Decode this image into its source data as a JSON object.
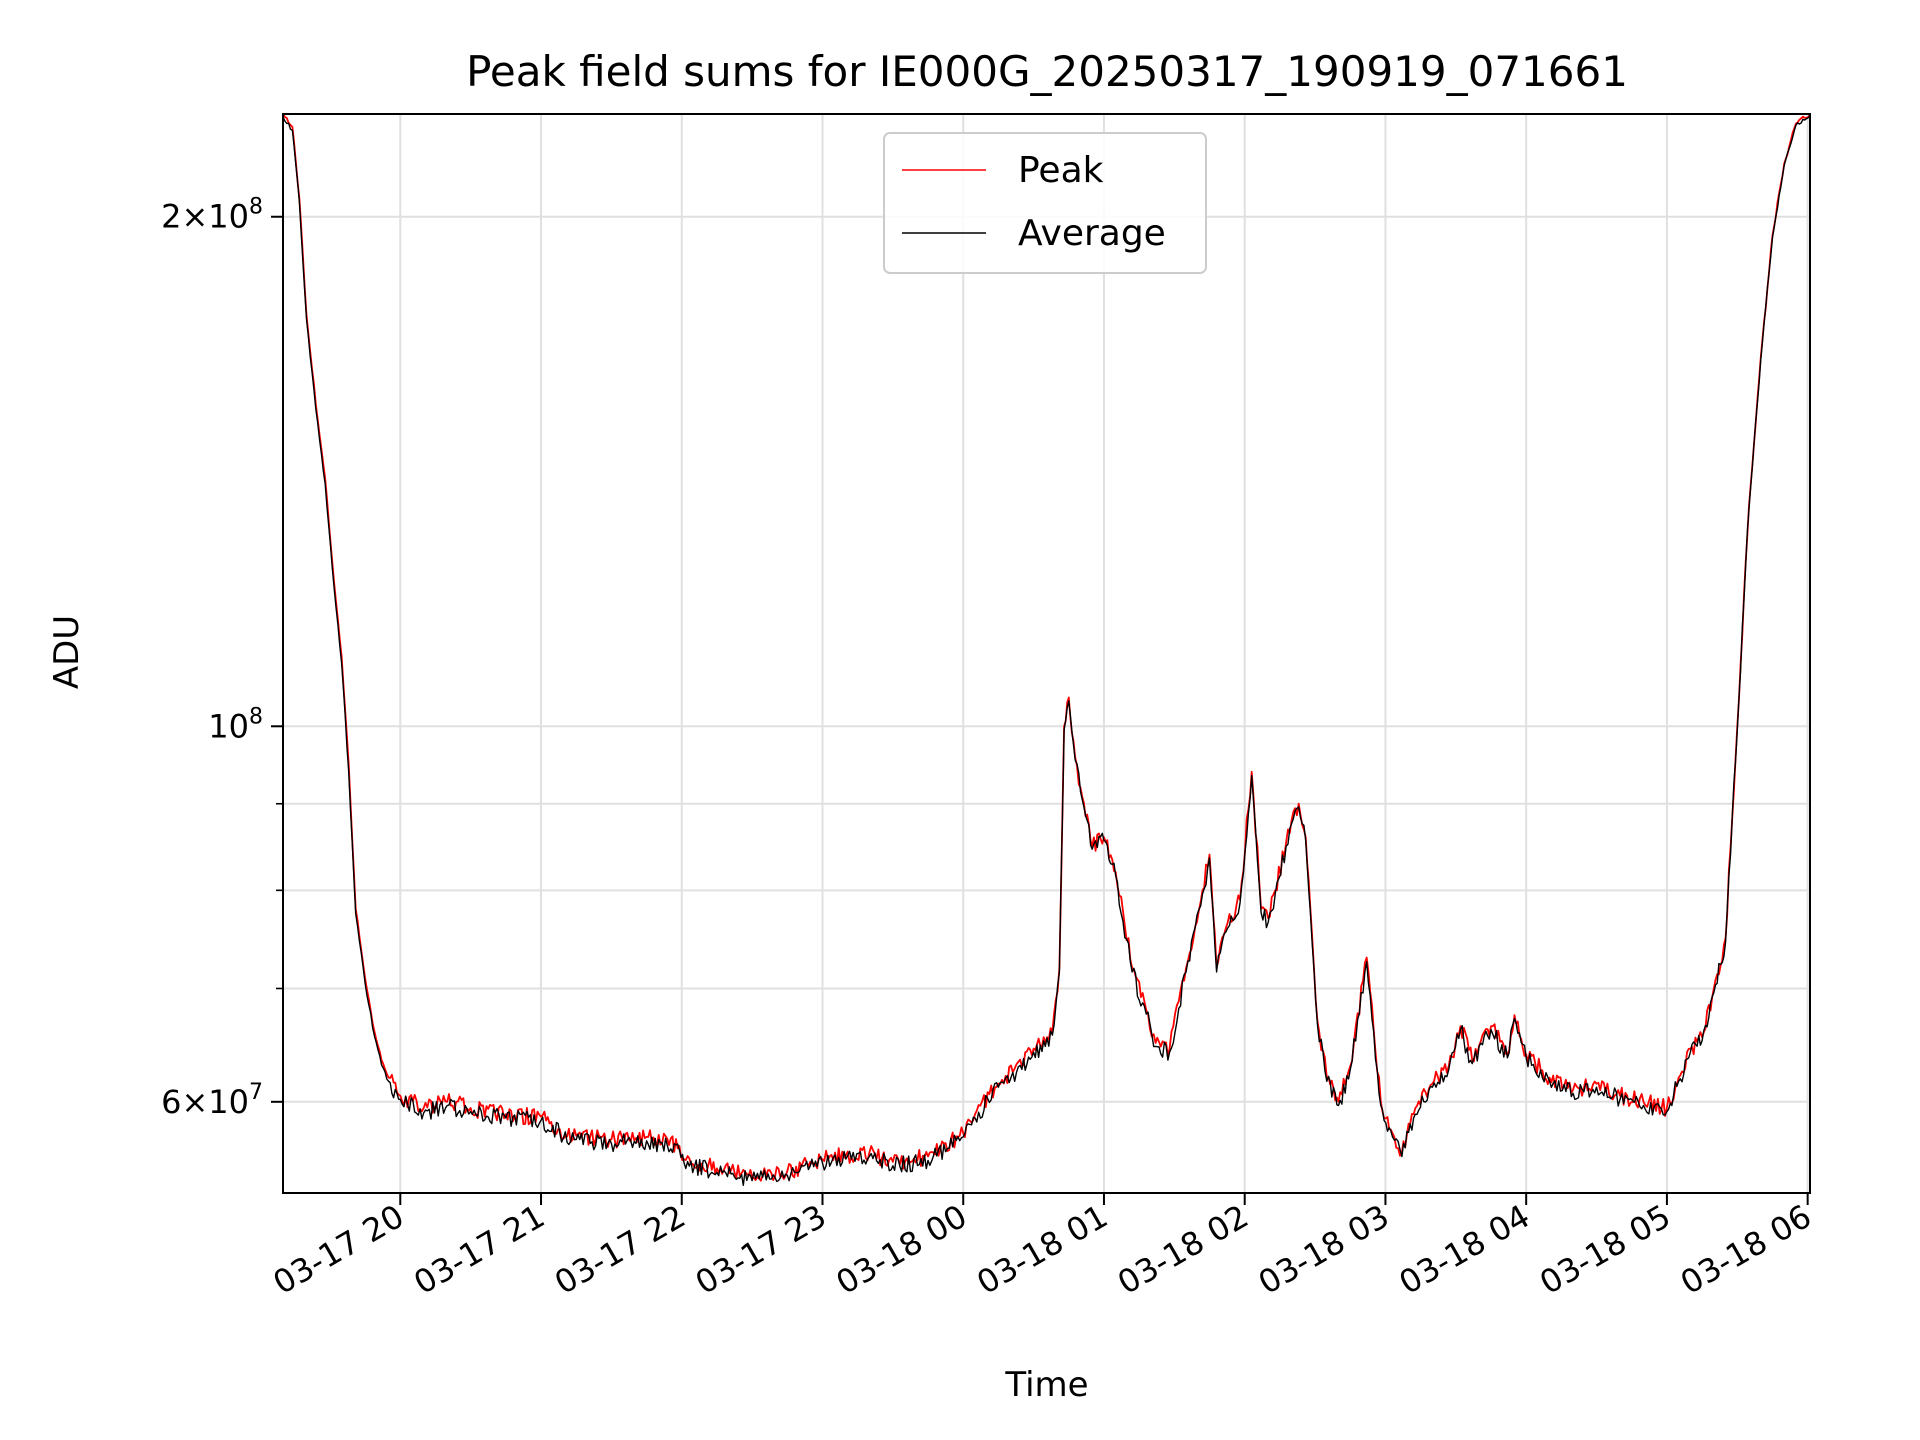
{
  "chart_data": {
    "type": "line",
    "title": "Peak field sums for IE000G_20250317_190919_071661",
    "xlabel": "Time",
    "ylabel": "ADU",
    "y_scale": "log",
    "ylim": [
      53000000,
      230000000
    ],
    "xlim": [
      "2025-03-17 19:10",
      "2025-03-18 06:01"
    ],
    "x_ticks": [
      "03-17 20",
      "03-17 21",
      "03-17 22",
      "03-17 23",
      "03-18 00",
      "03-18 01",
      "03-18 02",
      "03-18 03",
      "03-18 04",
      "03-18 05",
      "03-18 06"
    ],
    "y_major_ticks": [
      {
        "value": 60000000,
        "label_mantissa": "6",
        "label_base": "10",
        "label_exp": "7"
      },
      {
        "value": 100000000,
        "label_mantissa": "",
        "label_base": "10",
        "label_exp": "8"
      },
      {
        "value": 200000000,
        "label_mantissa": "2",
        "label_base": "10",
        "label_exp": "8"
      }
    ],
    "y_minor_ticks": [
      70000000,
      80000000,
      90000000
    ],
    "grid": true,
    "legend_position": "upper-center",
    "series": [
      {
        "name": "Peak",
        "color": "#ff0000",
        "x": [
          "2025-03-17 19:10",
          "2025-03-17 19:14",
          "2025-03-17 19:17",
          "2025-03-17 19:20",
          "2025-03-17 19:24",
          "2025-03-17 19:28",
          "2025-03-17 19:31",
          "2025-03-17 19:35",
          "2025-03-17 19:38",
          "2025-03-17 19:41",
          "2025-03-17 19:45",
          "2025-03-17 19:49",
          "2025-03-17 19:52",
          "2025-03-17 19:55",
          "2025-03-17 20:00",
          "2025-03-17 20:10",
          "2025-03-17 20:20",
          "2025-03-17 20:30",
          "2025-03-17 20:45",
          "2025-03-17 21:00",
          "2025-03-17 21:08",
          "2025-03-17 21:15",
          "2025-03-17 21:30",
          "2025-03-17 21:45",
          "2025-03-17 21:59",
          "2025-03-17 22:01",
          "2025-03-17 22:15",
          "2025-03-17 22:30",
          "2025-03-17 22:45",
          "2025-03-17 23:00",
          "2025-03-17 23:10",
          "2025-03-17 23:20",
          "2025-03-17 23:30",
          "2025-03-17 23:45",
          "2025-03-18 00:00",
          "2025-03-18 00:05",
          "2025-03-18 00:15",
          "2025-03-18 00:25",
          "2025-03-18 00:30",
          "2025-03-18 00:35",
          "2025-03-18 00:38",
          "2025-03-18 00:41",
          "2025-03-18 00:43",
          "2025-03-18 00:45",
          "2025-03-18 00:47",
          "2025-03-18 00:50",
          "2025-03-18 00:55",
          "2025-03-18 01:00",
          "2025-03-18 01:05",
          "2025-03-18 01:12",
          "2025-03-18 01:18",
          "2025-03-18 01:22",
          "2025-03-18 01:28",
          "2025-03-18 01:35",
          "2025-03-18 01:42",
          "2025-03-18 01:45",
          "2025-03-18 01:48",
          "2025-03-18 01:52",
          "2025-03-18 01:58",
          "2025-03-18 02:03",
          "2025-03-18 02:07",
          "2025-03-18 02:10",
          "2025-03-18 02:13",
          "2025-03-18 02:20",
          "2025-03-18 02:23",
          "2025-03-18 02:26",
          "2025-03-18 02:28",
          "2025-03-18 02:31",
          "2025-03-18 02:35",
          "2025-03-18 02:40",
          "2025-03-18 02:45",
          "2025-03-18 02:52",
          "2025-03-18 02:58",
          "2025-03-18 03:03",
          "2025-03-18 03:07",
          "2025-03-18 03:12",
          "2025-03-18 03:20",
          "2025-03-18 03:27",
          "2025-03-18 03:32",
          "2025-03-18 03:37",
          "2025-03-18 03:45",
          "2025-03-18 03:52",
          "2025-03-18 03:55",
          "2025-03-18 04:00",
          "2025-03-18 04:10",
          "2025-03-18 04:20",
          "2025-03-18 04:30",
          "2025-03-18 04:40",
          "2025-03-18 04:50",
          "2025-03-18 05:00",
          "2025-03-18 05:05",
          "2025-03-18 05:10",
          "2025-03-18 05:15",
          "2025-03-18 05:20",
          "2025-03-18 05:25",
          "2025-03-18 05:30",
          "2025-03-18 05:35",
          "2025-03-18 05:40",
          "2025-03-18 05:45",
          "2025-03-18 05:50",
          "2025-03-18 05:55",
          "2025-03-18 06:01"
        ],
        "y": [
          230000000,
          226000000,
          205000000,
          175000000,
          155000000,
          140000000,
          125000000,
          110000000,
          95000000,
          78000000,
          71000000,
          66000000,
          63500000,
          62000000,
          60500000,
          59500000,
          60000000,
          59500000,
          59000000,
          58800000,
          57800000,
          57300000,
          57000000,
          57200000,
          56500000,
          55500000,
          54800000,
          54200000,
          54600000,
          55500000,
          55800000,
          56000000,
          55300000,
          55700000,
          57500000,
          59000000,
          61500000,
          63000000,
          64500000,
          65000000,
          66000000,
          72000000,
          100000000,
          104000000,
          98000000,
          92000000,
          85000000,
          86000000,
          82000000,
          72000000,
          68000000,
          65000000,
          64500000,
          72000000,
          80000000,
          84000000,
          72000000,
          76000000,
          79000000,
          94000000,
          78000000,
          77000000,
          80000000,
          88000000,
          90000000,
          86000000,
          78000000,
          67000000,
          62000000,
          60000000,
          63000000,
          73000000,
          60000000,
          57500000,
          56000000,
          59000000,
          61500000,
          63000000,
          66500000,
          63500000,
          66500000,
          64000000,
          67500000,
          64000000,
          62000000,
          61000000,
          61500000,
          60500000,
          60000000,
          59500000,
          62000000,
          64500000,
          65500000,
          70000000,
          75000000,
          100000000,
          135000000,
          165000000,
          195000000,
          215000000,
          227000000,
          230000000
        ]
      },
      {
        "name": "Average",
        "color": "#000000",
        "x": [
          "2025-03-17 19:10",
          "2025-03-17 19:14",
          "2025-03-17 19:17",
          "2025-03-17 19:20",
          "2025-03-17 19:24",
          "2025-03-17 19:28",
          "2025-03-17 19:31",
          "2025-03-17 19:35",
          "2025-03-17 19:38",
          "2025-03-17 19:41",
          "2025-03-17 19:45",
          "2025-03-17 19:49",
          "2025-03-17 19:52",
          "2025-03-17 19:55",
          "2025-03-17 20:00",
          "2025-03-17 20:10",
          "2025-03-17 20:20",
          "2025-03-17 20:30",
          "2025-03-17 20:45",
          "2025-03-17 21:00",
          "2025-03-17 21:08",
          "2025-03-17 21:15",
          "2025-03-17 21:30",
          "2025-03-17 21:45",
          "2025-03-17 21:59",
          "2025-03-17 22:01",
          "2025-03-17 22:15",
          "2025-03-17 22:30",
          "2025-03-17 22:45",
          "2025-03-17 23:00",
          "2025-03-17 23:10",
          "2025-03-17 23:20",
          "2025-03-17 23:30",
          "2025-03-17 23:45",
          "2025-03-18 00:00",
          "2025-03-18 00:05",
          "2025-03-18 00:15",
          "2025-03-18 00:25",
          "2025-03-18 00:30",
          "2025-03-18 00:35",
          "2025-03-18 00:38",
          "2025-03-18 00:41",
          "2025-03-18 00:43",
          "2025-03-18 00:45",
          "2025-03-18 00:47",
          "2025-03-18 00:50",
          "2025-03-18 00:55",
          "2025-03-18 01:00",
          "2025-03-18 01:05",
          "2025-03-18 01:12",
          "2025-03-18 01:18",
          "2025-03-18 01:22",
          "2025-03-18 01:28",
          "2025-03-18 01:35",
          "2025-03-18 01:42",
          "2025-03-18 01:45",
          "2025-03-18 01:48",
          "2025-03-18 01:52",
          "2025-03-18 01:58",
          "2025-03-18 02:03",
          "2025-03-18 02:07",
          "2025-03-18 02:10",
          "2025-03-18 02:13",
          "2025-03-18 02:20",
          "2025-03-18 02:23",
          "2025-03-18 02:26",
          "2025-03-18 02:28",
          "2025-03-18 02:31",
          "2025-03-18 02:35",
          "2025-03-18 02:40",
          "2025-03-18 02:45",
          "2025-03-18 02:52",
          "2025-03-18 02:58",
          "2025-03-18 03:03",
          "2025-03-18 03:07",
          "2025-03-18 03:12",
          "2025-03-18 03:20",
          "2025-03-18 03:27",
          "2025-03-18 03:32",
          "2025-03-18 03:37",
          "2025-03-18 03:45",
          "2025-03-18 03:52",
          "2025-03-18 03:55",
          "2025-03-18 04:00",
          "2025-03-18 04:10",
          "2025-03-18 04:20",
          "2025-03-18 04:30",
          "2025-03-18 04:40",
          "2025-03-18 04:50",
          "2025-03-18 05:00",
          "2025-03-18 05:05",
          "2025-03-18 05:10",
          "2025-03-18 05:15",
          "2025-03-18 05:20",
          "2025-03-18 05:25",
          "2025-03-18 05:30",
          "2025-03-18 05:35",
          "2025-03-18 05:40",
          "2025-03-18 05:45",
          "2025-03-18 05:50",
          "2025-03-18 05:55",
          "2025-03-18 06:01"
        ],
        "y": [
          229000000,
          225000000,
          204000000,
          174000000,
          154000000,
          139000000,
          124000000,
          109000000,
          94000000,
          77500000,
          70500000,
          65600000,
          63100000,
          61700000,
          60200000,
          59100000,
          59700000,
          59200000,
          58700000,
          58500000,
          57500000,
          57000000,
          56700000,
          56900000,
          56200000,
          55200000,
          54500000,
          53900000,
          54300000,
          55200000,
          55500000,
          55700000,
          55000000,
          55400000,
          57200000,
          58700000,
          61200000,
          62700000,
          64200000,
          64700000,
          65700000,
          71600000,
          99500000,
          103500000,
          97500000,
          91500000,
          84600000,
          85600000,
          81600000,
          71600000,
          67600000,
          64700000,
          64200000,
          71600000,
          79600000,
          83600000,
          71600000,
          75600000,
          78600000,
          93500000,
          77600000,
          76600000,
          79600000,
          87600000,
          89600000,
          85600000,
          77600000,
          66700000,
          61700000,
          59700000,
          62700000,
          72600000,
          59700000,
          57200000,
          55700000,
          58700000,
          61200000,
          62700000,
          66200000,
          63200000,
          66200000,
          63700000,
          67200000,
          63700000,
          61700000,
          60700000,
          61200000,
          60200000,
          59700000,
          59200000,
          61700000,
          64200000,
          65200000,
          69600000,
          74600000,
          99500000,
          134500000,
          164500000,
          194500000,
          214500000,
          226500000,
          229500000
        ]
      }
    ]
  }
}
